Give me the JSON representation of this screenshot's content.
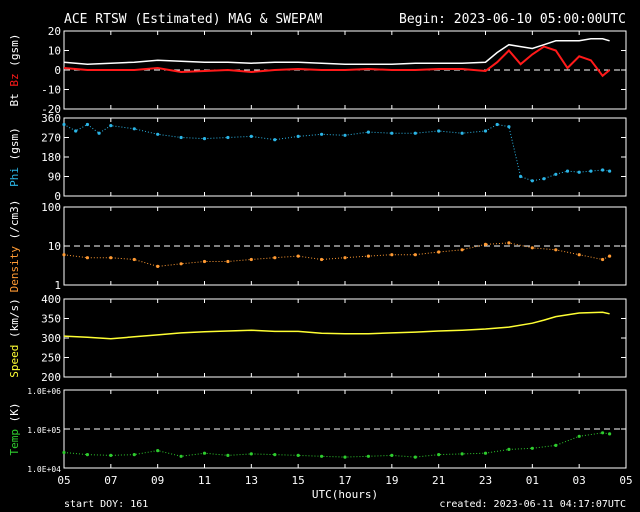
{
  "header": {
    "title": "ACE RTSW (Estimated) MAG & SWEPAM",
    "begin": "Begin: 2023-06-10 05:00:00UTC"
  },
  "footer": {
    "start_doy": "start DOY: 161",
    "created": "created: 2023-06-11 04:17:07UTC"
  },
  "colors": {
    "background": "#000000",
    "frame": "#ffffff",
    "bt": "#ffffff",
    "bz": "#ff1a1a",
    "phi": "#2bb5e6",
    "density": "#ff9a33",
    "speed": "#ffff33",
    "temp": "#2ecc2e"
  },
  "chart_data": [
    {
      "type": "line",
      "panel": "mag",
      "ylabel_parts": [
        "Bt",
        "Bz",
        "(gsm)"
      ],
      "ylim": [
        -20,
        20
      ],
      "yticks": [
        "20",
        "10",
        "0",
        "-10",
        "-20"
      ],
      "ytick_values": [
        20,
        10,
        0,
        -10,
        -20
      ],
      "dashed_refs": [
        0
      ],
      "x": [
        5,
        6,
        7,
        8,
        9,
        10,
        11,
        12,
        13,
        14,
        15,
        16,
        17,
        18,
        19,
        20,
        21,
        22,
        23,
        23.5,
        24,
        24.5,
        25,
        25.5,
        26,
        26.5,
        27,
        27.5,
        28,
        28.3
      ],
      "series": [
        {
          "name": "Bt",
          "values": [
            4,
            3,
            3.5,
            4,
            5,
            4.5,
            4,
            4,
            3.5,
            4,
            4,
            3.5,
            3,
            3,
            3,
            3.5,
            3.5,
            3.5,
            4,
            9,
            13,
            12,
            11,
            13,
            15,
            15,
            15,
            16,
            16,
            15
          ]
        },
        {
          "name": "Bz",
          "values": [
            1,
            0,
            0,
            0,
            1,
            -1,
            -0.5,
            0,
            -1,
            0,
            0.5,
            0,
            0,
            0.5,
            0,
            0,
            0.5,
            0.5,
            -0.5,
            4,
            10,
            3,
            8,
            12,
            10,
            1,
            7,
            5,
            -3,
            0
          ]
        }
      ]
    },
    {
      "type": "scatter",
      "panel": "phi",
      "ylabel_parts": [
        "Phi",
        "(gsm)"
      ],
      "ylim": [
        0,
        360
      ],
      "yticks": [
        "360",
        "270",
        "180",
        "90",
        "0"
      ],
      "ytick_values": [
        360,
        270,
        180,
        90,
        0
      ],
      "dashed_refs": [],
      "x": [
        5,
        5.5,
        6,
        6.5,
        7,
        8,
        9,
        10,
        11,
        12,
        13,
        14,
        15,
        16,
        17,
        18,
        19,
        20,
        21,
        22,
        23,
        23.5,
        24,
        24.5,
        25,
        25.5,
        26,
        26.5,
        27,
        27.5,
        28,
        28.3
      ],
      "series": [
        {
          "name": "Phi",
          "values": [
            330,
            300,
            330,
            290,
            325,
            310,
            285,
            270,
            265,
            270,
            275,
            260,
            275,
            285,
            280,
            295,
            290,
            290,
            300,
            290,
            300,
            330,
            320,
            90,
            70,
            80,
            100,
            115,
            110,
            115,
            120,
            115
          ]
        }
      ]
    },
    {
      "type": "scatter",
      "panel": "density",
      "ylabel_parts": [
        "Density",
        "(/cm3)"
      ],
      "scale": "log",
      "ylim": [
        1,
        100
      ],
      "yticks": [
        "100",
        "10",
        "1"
      ],
      "ytick_values": [
        100,
        10,
        1
      ],
      "dashed_refs": [
        10
      ],
      "x": [
        5,
        6,
        7,
        8,
        9,
        10,
        11,
        12,
        13,
        14,
        15,
        16,
        17,
        18,
        19,
        20,
        21,
        22,
        23,
        24,
        25,
        26,
        27,
        28,
        28.3
      ],
      "series": [
        {
          "name": "Density",
          "values": [
            6,
            5,
            5,
            4.5,
            3,
            3.5,
            4,
            4,
            4.5,
            5,
            5.5,
            4.5,
            5,
            5.5,
            6,
            6,
            7,
            8,
            11,
            12,
            9,
            8,
            6,
            4.5,
            5.5
          ]
        }
      ]
    },
    {
      "type": "line",
      "panel": "speed",
      "ylabel_parts": [
        "Speed",
        "(km/s)"
      ],
      "ylim": [
        200,
        400
      ],
      "yticks": [
        "400",
        "350",
        "300",
        "250",
        "200"
      ],
      "ytick_values": [
        400,
        350,
        300,
        250,
        200
      ],
      "dashed_refs": [],
      "x": [
        5,
        6,
        7,
        8,
        9,
        10,
        11,
        12,
        13,
        14,
        15,
        16,
        17,
        18,
        19,
        20,
        21,
        22,
        23,
        24,
        25,
        25.5,
        26,
        27,
        28,
        28.3
      ],
      "series": [
        {
          "name": "Speed",
          "values": [
            305,
            302,
            298,
            303,
            308,
            313,
            316,
            318,
            320,
            317,
            317,
            312,
            311,
            311,
            313,
            315,
            318,
            320,
            323,
            328,
            338,
            346,
            355,
            364,
            366,
            362
          ]
        }
      ]
    },
    {
      "type": "scatter",
      "panel": "temp",
      "ylabel_parts": [
        "Temp",
        "(K)"
      ],
      "scale": "log",
      "ylim": [
        10000,
        1000000
      ],
      "yticks": [
        "1.0E+06",
        "1.0E+05",
        "1.0E+04"
      ],
      "ytick_values": [
        1000000,
        100000,
        10000
      ],
      "dashed_refs": [
        100000
      ],
      "x": [
        5,
        6,
        7,
        8,
        9,
        10,
        11,
        12,
        13,
        14,
        15,
        16,
        17,
        18,
        19,
        20,
        21,
        22,
        23,
        24,
        25,
        26,
        27,
        28,
        28.3
      ],
      "series": [
        {
          "name": "Temp",
          "values": [
            25000,
            22000,
            21000,
            22000,
            28000,
            20000,
            24000,
            21000,
            23000,
            22000,
            21000,
            20000,
            19000,
            20000,
            21000,
            19000,
            22000,
            23000,
            24000,
            30000,
            32000,
            38000,
            65000,
            80000,
            75000
          ]
        }
      ]
    }
  ],
  "xaxis": {
    "label": "UTC(hours)",
    "ticks": [
      "05",
      "07",
      "09",
      "11",
      "13",
      "15",
      "17",
      "19",
      "21",
      "23",
      "01",
      "03",
      "05"
    ],
    "tick_values": [
      5,
      7,
      9,
      11,
      13,
      15,
      17,
      19,
      21,
      23,
      25,
      27,
      29
    ],
    "range": [
      5,
      29
    ]
  }
}
